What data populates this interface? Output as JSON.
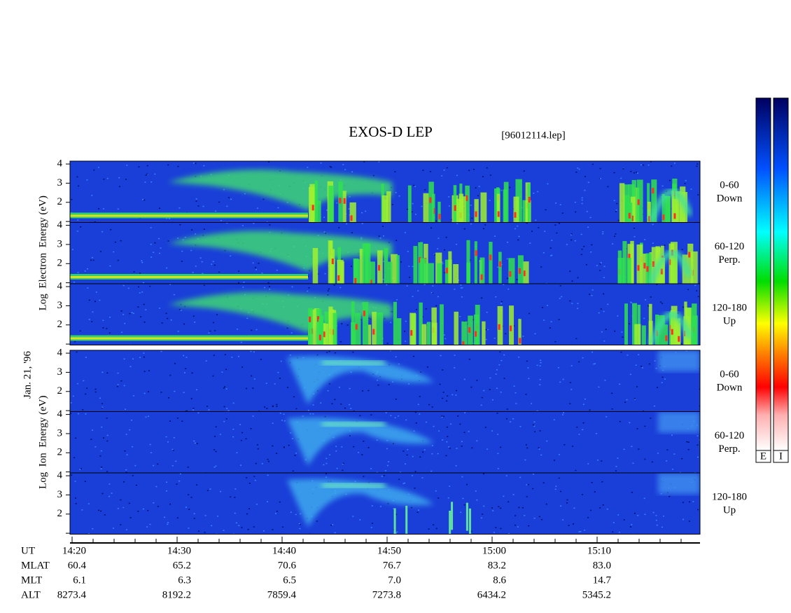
{
  "header": {
    "title": "EXOS-D LEP",
    "file": "[96012114.lep]"
  },
  "side_label": "Jan. 21, '96",
  "groups": [
    {
      "label": "Log  Electron  Energy (eV)",
      "panels": [
        {
          "yticks": [
            2,
            3,
            4
          ],
          "label": [
            "0-60",
            "Down"
          ]
        },
        {
          "yticks": [
            2,
            3,
            4
          ],
          "label": [
            "60-120",
            "Perp."
          ]
        },
        {
          "yticks": [
            2,
            3,
            4
          ],
          "label": [
            "120-180",
            "Up"
          ]
        }
      ]
    },
    {
      "label": "Log  Ion  Energy (eV)",
      "panels": [
        {
          "yticks": [
            2,
            3,
            4
          ],
          "label": [
            "0-60",
            "Down"
          ]
        },
        {
          "yticks": [
            2,
            3,
            4
          ],
          "label": [
            "60-120",
            "Perp."
          ]
        },
        {
          "yticks": [
            2,
            3,
            4
          ],
          "label": [
            "120-180",
            "Up"
          ]
        }
      ]
    }
  ],
  "colorbar_labels": [
    "E",
    "I"
  ],
  "time_axis": {
    "rows": [
      {
        "name": "UT",
        "values": [
          "14:20",
          "14:30",
          "14:40",
          "14:50",
          "15:00",
          "15:10"
        ]
      },
      {
        "name": "MLAT",
        "values": [
          "60.4",
          "65.2",
          "70.6",
          "76.7",
          "83.2",
          "83.0"
        ]
      },
      {
        "name": "MLT",
        "values": [
          "6.1",
          "6.3",
          "6.5",
          "7.0",
          "8.6",
          "14.7"
        ]
      },
      {
        "name": "ALT",
        "values": [
          "8273.4",
          "8192.2",
          "7859.4",
          "7273.8",
          "6434.2",
          "5345.2"
        ]
      }
    ]
  }
}
